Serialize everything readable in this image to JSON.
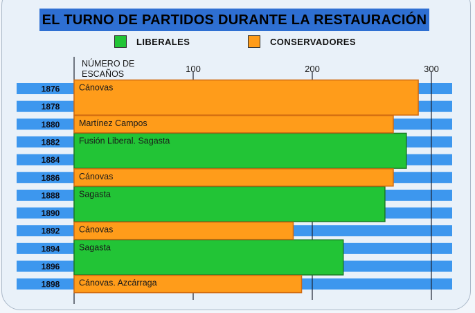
{
  "chart_data": {
    "type": "bar",
    "title": "EL TURNO DE PARTIDOS DURANTE LA RESTAURACIÓN",
    "ylabel": "NÚMERO DE\nESCAÑOS",
    "xlim": [
      0,
      300
    ],
    "x_ticks": [
      100,
      200,
      300
    ],
    "years": [
      "1876",
      "1878",
      "1880",
      "1882",
      "1884",
      "1886",
      "1888",
      "1890",
      "1892",
      "1894",
      "1896",
      "1898"
    ],
    "legend": [
      {
        "label": "LIBERALES",
        "color": "#22c436"
      },
      {
        "label": "CONSERVADORES",
        "color": "#ff9c1a"
      }
    ],
    "series": [
      {
        "name": "LIBERALES",
        "values": [
          {
            "label": "Fusión Liberal. Sagasta",
            "from": "1882",
            "to": "1884",
            "seats": 279
          },
          {
            "label": "Sagasta",
            "from": "1888",
            "to": "1890",
            "seats": 261
          },
          {
            "label": "Sagasta",
            "from": "1894",
            "to": "1896",
            "seats": 226
          }
        ]
      },
      {
        "name": "CONSERVADORES",
        "values": [
          {
            "label": "Cánovas",
            "from": "1876",
            "to": "1878",
            "seats": 289
          },
          {
            "label": "Martínez Campos",
            "from": "1880",
            "to": "1880",
            "seats": 268
          },
          {
            "label": "Cánovas",
            "from": "1886",
            "to": "1886",
            "seats": 268
          },
          {
            "label": "Cánovas",
            "from": "1892",
            "to": "1892",
            "seats": 184
          },
          {
            "label": "Cánovas. Azcárraga",
            "from": "1898",
            "to": "1898",
            "seats": 191
          }
        ]
      }
    ]
  }
}
